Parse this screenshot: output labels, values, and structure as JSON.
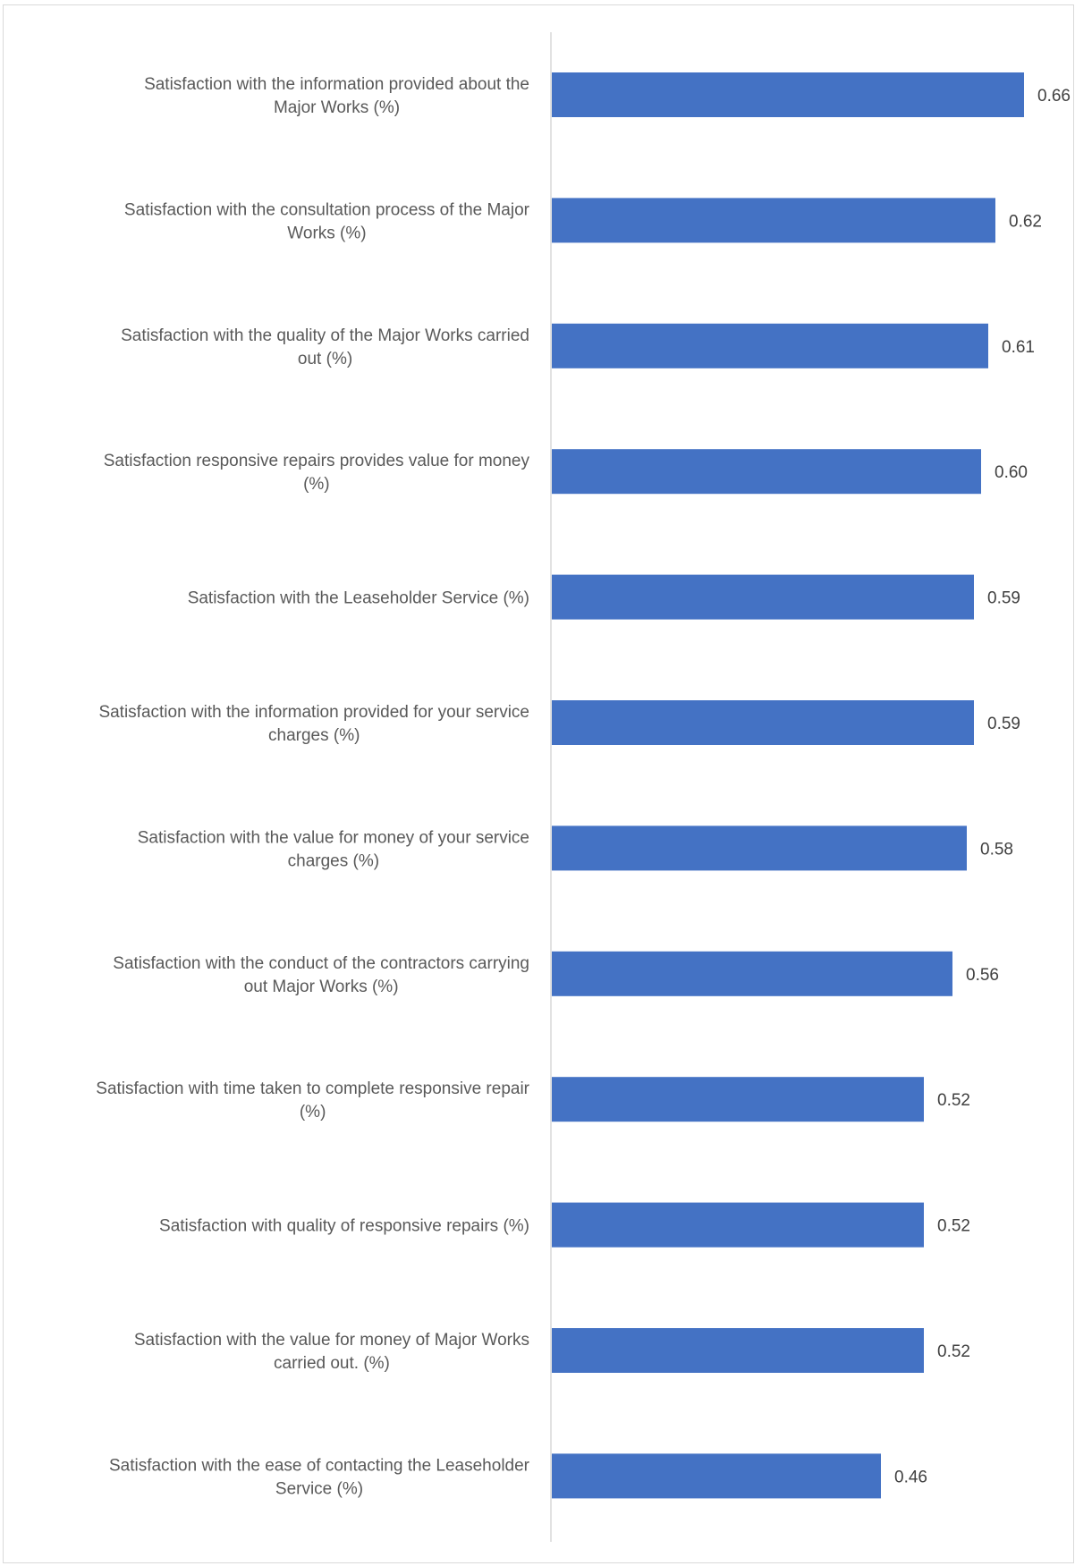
{
  "chart_data": {
    "type": "bar",
    "orientation": "horizontal",
    "categories": [
      [
        "Satisfaction with the information provided about the",
        "Major Works (%)"
      ],
      [
        "Satisfaction with the consultation process of the Major",
        "Works (%)"
      ],
      [
        "Satisfaction with the quality of the Major Works carried",
        "out (%)"
      ],
      [
        "Satisfaction responsive repairs provides value for money",
        "(%)"
      ],
      [
        "Satisfaction with the Leaseholder Service (%)"
      ],
      [
        "Satisfaction with the information provided for your service",
        "charges (%)"
      ],
      [
        "Satisfaction with the value for money of your service",
        "charges (%)"
      ],
      [
        "Satisfaction with the conduct of the contractors carrying",
        "out Major Works (%)"
      ],
      [
        "Satisfaction with time taken to complete responsive repair",
        "(%)"
      ],
      [
        "Satisfaction with quality of responsive repairs (%)"
      ],
      [
        "Satisfaction with the value for money of Major Works",
        "carried out. (%)"
      ],
      [
        "Satisfaction with the ease of contacting the Leaseholder",
        "Service (%)"
      ]
    ],
    "values": [
      0.66,
      0.62,
      0.61,
      0.6,
      0.59,
      0.59,
      0.58,
      0.56,
      0.52,
      0.52,
      0.52,
      0.46
    ],
    "value_labels": [
      "0.66",
      "0.62",
      "0.61",
      "0.60",
      "0.59",
      "0.59",
      "0.58",
      "0.56",
      "0.52",
      "0.52",
      "0.52",
      "0.46"
    ],
    "xlim": [
      0,
      0.66
    ],
    "grid": false,
    "legend": "none",
    "bar_color": "#4472c4",
    "axis_color": "#d9d9d9"
  }
}
